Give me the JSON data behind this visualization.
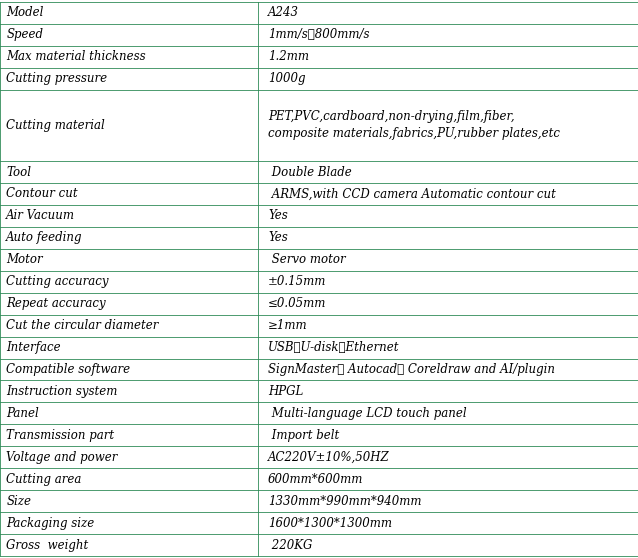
{
  "col_split": 0.405,
  "rows": [
    {
      "param": "Model",
      "value": "A243",
      "tall": false
    },
    {
      "param": "Speed",
      "value": "1mm/s～800mm/s",
      "tall": false
    },
    {
      "param": "Max material thickness",
      "value": "1.2mm",
      "tall": false
    },
    {
      "param": "Cutting pressure",
      "value": "1000g",
      "tall": false
    },
    {
      "param": "Cutting material",
      "value": "PET,PVC,cardboard,non-drying,film,fiber,\ncomposite materials,fabrics,PU,rubber plates,etc",
      "tall": true
    },
    {
      "param": "Tool",
      "value": " Double Blade",
      "tall": false
    },
    {
      "param": "Contour cut",
      "value": " ARMS,with CCD camera Automatic contour cut",
      "tall": false
    },
    {
      "param": "Air Vacuum",
      "value": "Yes",
      "tall": false
    },
    {
      "param": "Auto feeding",
      "value": "Yes",
      "tall": false
    },
    {
      "param": "Motor",
      "value": " Servo motor",
      "tall": false
    },
    {
      "param": "Cutting accuracy",
      "value": "±0.15mm",
      "tall": false
    },
    {
      "param": "Repeat accuracy",
      "value": "≤0.05mm",
      "tall": false
    },
    {
      "param": "Cut the circular diameter",
      "value": "≥1mm",
      "tall": false
    },
    {
      "param": "Interface",
      "value": "USB、U-disk、Ethernet",
      "tall": false
    },
    {
      "param": "Compatible software",
      "value": "SignMaster、 Autocad、 Coreldraw and AI/plugin",
      "tall": false
    },
    {
      "param": "Instruction system",
      "value": "HPGL",
      "tall": false
    },
    {
      "param": "Panel",
      "value": " Multi-language LCD touch panel",
      "tall": false
    },
    {
      "param": "Transmission part",
      "value": " Import belt",
      "tall": false
    },
    {
      "param": "Voltage and power",
      "value": "AC220V±10%,50HZ",
      "tall": false
    },
    {
      "param": "Cutting area",
      "value": "600mm*600mm",
      "tall": false
    },
    {
      "param": "Size",
      "value": "1330mm*990mm*940mm",
      "tall": false
    },
    {
      "param": "Packaging size",
      "value": "1600*1300*1300mm",
      "tall": false
    },
    {
      "param": "Gross  weight",
      "value": " 220KG",
      "tall": false
    }
  ],
  "border_color": "#2e8b57",
  "text_color": "#000000",
  "font_size": 8.5,
  "fig_width": 6.38,
  "fig_height": 5.58
}
